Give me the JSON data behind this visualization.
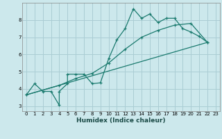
{
  "xlabel": "Humidex (Indice chaleur)",
  "bg_color": "#cce8ec",
  "grid_color": "#aacdd4",
  "line_color": "#1a7a6e",
  "xlim": [
    -0.5,
    23.5
  ],
  "ylim": [
    2.7,
    9.0
  ],
  "yticks": [
    3,
    4,
    5,
    6,
    7,
    8
  ],
  "xticks": [
    0,
    1,
    2,
    3,
    4,
    5,
    6,
    7,
    8,
    9,
    10,
    11,
    12,
    13,
    14,
    15,
    16,
    17,
    18,
    19,
    20,
    21,
    22,
    23
  ],
  "line1_x": [
    0,
    1,
    2,
    3,
    4,
    4,
    5,
    5,
    6,
    7,
    8,
    9,
    10,
    11,
    12,
    13,
    14,
    15,
    16,
    17,
    18,
    19,
    20,
    21,
    22
  ],
  "line1_y": [
    3.65,
    4.3,
    3.85,
    3.85,
    3.05,
    3.85,
    4.3,
    4.85,
    4.85,
    4.85,
    4.3,
    4.35,
    5.75,
    6.85,
    7.5,
    8.65,
    8.1,
    8.35,
    7.85,
    8.1,
    8.1,
    7.5,
    7.3,
    7.05,
    6.7
  ],
  "line2_x": [
    0,
    4,
    6,
    8,
    10,
    12,
    14,
    16,
    18,
    20,
    22
  ],
  "line2_y": [
    3.65,
    4.2,
    4.6,
    4.9,
    5.5,
    6.3,
    7.0,
    7.4,
    7.7,
    7.8,
    6.7
  ],
  "line3_x": [
    0,
    22
  ],
  "line3_y": [
    3.65,
    6.7
  ]
}
